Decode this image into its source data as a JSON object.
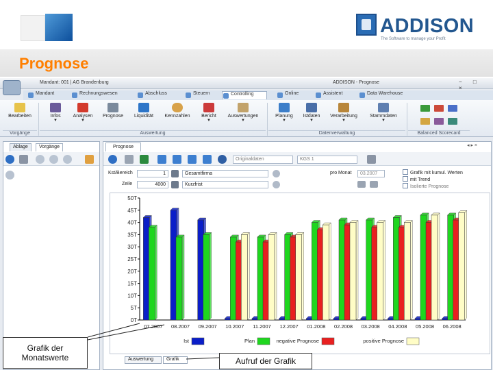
{
  "slide": {
    "title": "Prognose",
    "brand": {
      "name": "ADDISON",
      "tagline": "The Software to manage your Profit"
    }
  },
  "window": {
    "qat_title": "Mandant: 001 | AG Brandenburg",
    "app_title": "ADDISON - Prognose",
    "controls": "− □ ×"
  },
  "menu_tabs": [
    "Mandant",
    "Rechnungswesen",
    "Abschluss",
    "Steuern",
    "Controlling",
    "Online",
    "Assistent",
    "Data Warehouse"
  ],
  "active_menu_tab": "Controlling",
  "ribbon": {
    "buttons": [
      "Bearbeiten",
      "Infos",
      "Analysen",
      "Prognose",
      "Liquidität",
      "Kennzahlen",
      "Bericht",
      "Auswertungen",
      "Planung",
      "Istdaten",
      "Verarbeitung",
      "Stammdaten"
    ],
    "dropdown_mark": "▼",
    "groups": [
      "Vorgänge",
      "Auswertung",
      "Datenverwaltung",
      "Balanced Scorecard"
    ]
  },
  "left_panel": {
    "tabs": [
      "Ablage",
      "Vorgänge"
    ]
  },
  "right_panel": {
    "tab": "Prognose",
    "controls": "◂ ▸ ×",
    "combo_view": "Originaldaten",
    "combo_kgs": "KGS 1",
    "form": {
      "row1_label": "Kst/Bereich",
      "row1_value": "1",
      "row1_name": "Gesamtfirma",
      "row2_label": "Zeile",
      "row2_value": "4000",
      "row2_name": "Kurzfrist",
      "month_label": "pro Monat",
      "month_value": "03.2007"
    },
    "checkboxes": [
      "Grafik mit kumul. Werten",
      "mit Trend",
      "Isolierte Prognose"
    ]
  },
  "chart_data": {
    "type": "bar",
    "title": "",
    "xlabel": "",
    "ylabel": "",
    "y_ticks": [
      "0T",
      "5T",
      "10T",
      "15T",
      "20T",
      "25T",
      "30T",
      "35T",
      "40T",
      "45T",
      "50T"
    ],
    "ylim": [
      0,
      50
    ],
    "categories": [
      "07.2007",
      "08.2007",
      "09.2007",
      "10.2007",
      "11.2007",
      "12.2007",
      "01.2008",
      "02.2008",
      "03.2008",
      "04.2008",
      "05.2008",
      "06.2008"
    ],
    "x_tick_labels": [
      "07.2007",
      "08.2007",
      "09.2007",
      "10.2007",
      "11.2007",
      "12.2007",
      "01.2008",
      "02.2008",
      "03.2008",
      "04.2008",
      "05.2008",
      "06.2008"
    ],
    "series": [
      {
        "name": "Ist",
        "color": "#0a1ec8",
        "values": [
          42,
          45,
          41,
          0.6,
          0.6,
          0.6,
          0.6,
          0.6,
          0.6,
          0.6,
          0.6,
          0.6
        ]
      },
      {
        "name": "Plan",
        "color": "#1fd61f",
        "values": [
          38,
          34,
          35,
          34,
          34,
          35,
          40,
          41,
          41,
          42,
          43,
          43
        ]
      },
      {
        "name": "negative Prognose",
        "color": "#e82020",
        "values": [
          0,
          0,
          0,
          32,
          32,
          34,
          37,
          39,
          38,
          38,
          40,
          41
        ]
      },
      {
        "name": "positive Prognose",
        "color": "#fffdc6",
        "values": [
          0,
          0,
          0,
          35,
          35,
          35,
          39,
          40,
          40,
          40,
          43,
          44
        ]
      }
    ],
    "legend_position": "bottom",
    "grid": false
  },
  "bottom_tabs": [
    "Auswertung",
    "Grafik"
  ],
  "callouts": {
    "left": "Grafik der Monatswerte",
    "bottom": "Aufruf der Grafik"
  }
}
